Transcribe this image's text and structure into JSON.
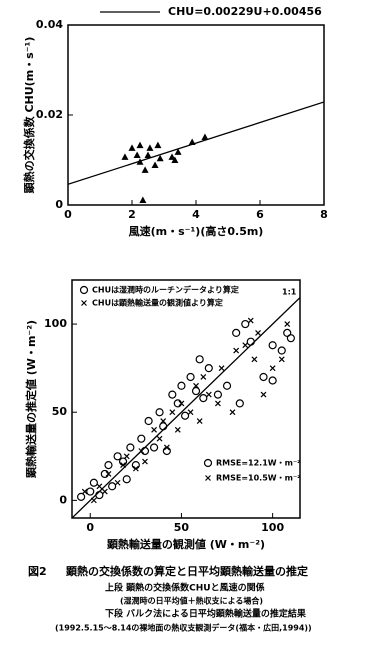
{
  "chart_data": [
    {
      "type": "scatter",
      "xlabel": "風速(m・s⁻¹)(高さ0.5m)",
      "ylabel": "顕熱の交換係数 CHU(m・s⁻¹)",
      "xlim": [
        0,
        8
      ],
      "ylim": [
        0,
        0.04
      ],
      "xticks": [
        0,
        2,
        4,
        6,
        8
      ],
      "yticks": [
        0,
        0.02,
        0.04
      ],
      "series": [
        {
          "type": "scatter",
          "marker": "triangle",
          "color": "#000",
          "x": [
            1.78,
            2.0,
            2.16,
            2.25,
            2.25,
            2.34,
            2.41,
            2.5,
            2.56,
            2.72,
            2.81,
            2.88,
            3.25,
            3.34,
            3.44,
            3.88,
            4.28
          ],
          "values": [
            0.0107,
            0.0127,
            0.0111,
            0.0133,
            0.0096,
            0.0011,
            0.0078,
            0.0111,
            0.0127,
            0.0089,
            0.0133,
            0.0104,
            0.0107,
            0.01,
            0.0118,
            0.014,
            0.0151
          ]
        },
        {
          "type": "line",
          "name": "CHU=0.00229U+0.00456",
          "color": "#000",
          "x": [
            0,
            8
          ],
          "values": [
            0.0046,
            0.0229
          ]
        }
      ]
    },
    {
      "type": "scatter",
      "xlabel": "顕熱輸送量の観測値 (W・m⁻²)",
      "ylabel": "顕熱輸送量の推定値 (W・m⁻²)",
      "xlim": [
        -10,
        115
      ],
      "ylim": [
        -10,
        125
      ],
      "xticks": [
        0,
        50,
        100
      ],
      "yticks": [
        0,
        50,
        100
      ],
      "series": [
        {
          "type": "scatter",
          "marker": "circle",
          "color": "#000",
          "name": "CHUは湿潤時のルーチンデータより算定",
          "x": [
            -5,
            0,
            2,
            5,
            8,
            10,
            12,
            15,
            18,
            20,
            22,
            25,
            28,
            30,
            32,
            35,
            38,
            40,
            42,
            45,
            48,
            50,
            52,
            55,
            58,
            60,
            62,
            65,
            70,
            75,
            80,
            82,
            85,
            88,
            95,
            100,
            100,
            105,
            108,
            110
          ],
          "values": [
            2,
            5,
            10,
            3,
            15,
            20,
            8,
            25,
            22,
            12,
            30,
            20,
            35,
            28,
            45,
            30,
            50,
            42,
            28,
            60,
            55,
            65,
            48,
            70,
            62,
            80,
            58,
            75,
            60,
            65,
            95,
            55,
            100,
            90,
            70,
            68,
            88,
            85,
            95,
            92
          ]
        },
        {
          "type": "scatter",
          "marker": "x",
          "color": "#000",
          "name": "CHUは顕熱輸送量の観測値より算定",
          "x": [
            -3,
            2,
            5,
            8,
            10,
            15,
            18,
            20,
            25,
            28,
            30,
            35,
            38,
            40,
            42,
            45,
            48,
            50,
            55,
            58,
            60,
            62,
            65,
            70,
            72,
            78,
            80,
            85,
            88,
            90,
            92,
            95,
            100,
            105,
            108
          ],
          "values": [
            5,
            0,
            8,
            5,
            15,
            10,
            20,
            25,
            18,
            28,
            22,
            40,
            35,
            45,
            30,
            50,
            40,
            55,
            50,
            65,
            45,
            70,
            60,
            55,
            75,
            50,
            85,
            88,
            102,
            80,
            95,
            60,
            75,
            80,
            100
          ]
        },
        {
          "type": "line",
          "name": "1:1",
          "color": "#000",
          "x": [
            -10,
            115
          ],
          "values": [
            -10,
            115
          ]
        }
      ],
      "annotations": [
        "RMSE=12.1W・m⁻²",
        "RMSE=10.5W・m⁻²"
      ]
    }
  ],
  "caption": {
    "figure": "図2",
    "title": "顕熱の交換係数の算定と日平均顕熱輸送量の推定",
    "lines": [
      "上段 顕熱の交換係数CHUと風速の関係",
      "(湿潤時の日平均値＋熱収支による場合)",
      "下段 バルク法による日平均顕熱輸送量の推定結果",
      "(1992.5.15〜8.14の裸地面の熱収支観測データ(福本・広田,1994))"
    ]
  }
}
